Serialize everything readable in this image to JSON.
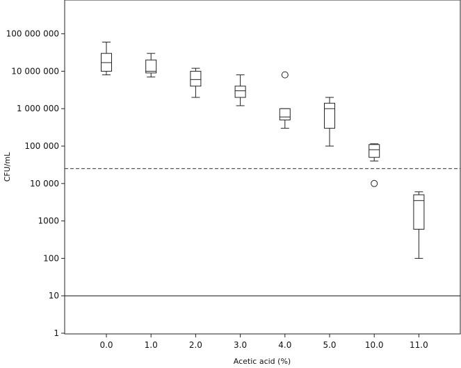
{
  "chart_data": {
    "type": "box",
    "xlabel": "Acetic acid (%)",
    "ylabel": "CFU/mL",
    "yscale": "log",
    "ylim": [
      1,
      1000000000
    ],
    "grid": false,
    "legend": "none",
    "categories": [
      "0.0",
      "1.0",
      "2.0",
      "3.0",
      "4.0",
      "5.0",
      "10.0",
      "11.0"
    ],
    "y_ticks": [
      {
        "value": 1,
        "label": "1"
      },
      {
        "value": 10,
        "label": "10"
      },
      {
        "value": 100,
        "label": "100"
      },
      {
        "value": 1000,
        "label": "1000"
      },
      {
        "value": 10000,
        "label": "10 000"
      },
      {
        "value": 100000,
        "label": "100 000"
      },
      {
        "value": 1000000,
        "label": "1 000 000"
      },
      {
        "value": 10000000,
        "label": "10 000 000"
      },
      {
        "value": 100000000,
        "label": "100 000 000"
      }
    ],
    "boxes": [
      {
        "category": "0.0",
        "min": 8000000,
        "q1": 10000000,
        "median": 17000000,
        "q3": 30000000,
        "max": 60000000,
        "outliers": []
      },
      {
        "category": "1.0",
        "min": 7000000,
        "q1": 9000000,
        "median": 10000000,
        "q3": 20000000,
        "max": 30000000,
        "outliers": []
      },
      {
        "category": "2.0",
        "min": 2000000,
        "q1": 4000000,
        "median": 6000000,
        "q3": 10000000,
        "max": 12000000,
        "outliers": []
      },
      {
        "category": "3.0",
        "min": 1200000,
        "q1": 2000000,
        "median": 3000000,
        "q3": 4000000,
        "max": 8000000,
        "outliers": []
      },
      {
        "category": "4.0",
        "min": 300000,
        "q1": 500000,
        "median": 600000,
        "q3": 1000000,
        "max": 1000000,
        "outliers": [
          8000000
        ]
      },
      {
        "category": "5.0",
        "min": 100000,
        "q1": 300000,
        "median": 1000000,
        "q3": 1400000,
        "max": 2000000,
        "outliers": []
      },
      {
        "category": "10.0",
        "min": 40000,
        "q1": 50000,
        "median": 80000,
        "q3": 110000,
        "max": 115000,
        "outliers": [
          10000
        ]
      },
      {
        "category": "11.0",
        "min": 100,
        "q1": 600,
        "median": 3500,
        "q3": 5000,
        "max": 6000,
        "outliers": []
      }
    ],
    "reference_lines": [
      {
        "value": 25000,
        "style": "dashed",
        "color": "#333333"
      },
      {
        "value": 10,
        "style": "solid",
        "color": "#111111"
      }
    ]
  }
}
